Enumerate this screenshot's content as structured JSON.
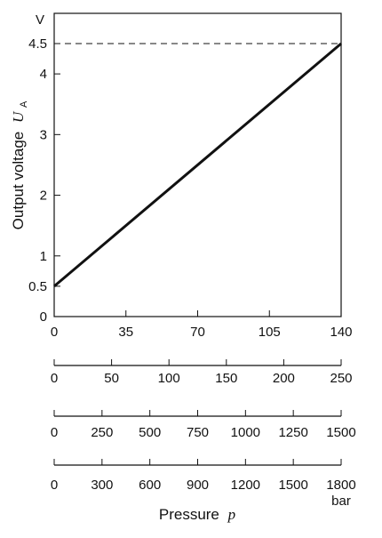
{
  "chart_data": {
    "type": "line",
    "title": "",
    "ylabel": "Output voltage",
    "ylabel_symbol": "U",
    "ylabel_subscript": "A",
    "y_unit": "V",
    "ylim": [
      0,
      4.5
    ],
    "yticks": [
      0,
      0.5,
      1,
      2,
      3,
      4,
      4.5
    ],
    "reference_line": {
      "y": 4.5,
      "style": "dashed"
    },
    "grid": false,
    "series": [
      {
        "x": [
          0,
          140
        ],
        "y": [
          0.5,
          4.5
        ]
      }
    ],
    "x_axes": [
      {
        "ticks": [
          0,
          35,
          70,
          105,
          140
        ],
        "min": 0,
        "max": 140,
        "unit": ""
      },
      {
        "ticks": [
          0,
          50,
          100,
          150,
          200,
          250
        ],
        "min": 0,
        "max": 250,
        "unit": ""
      },
      {
        "ticks": [
          0,
          250,
          500,
          750,
          1000,
          1250,
          1500
        ],
        "min": 0,
        "max": 1500,
        "unit": ""
      },
      {
        "ticks": [
          0,
          300,
          600,
          900,
          1200,
          1500,
          1800
        ],
        "min": 0,
        "max": 1800,
        "unit": "bar"
      }
    ],
    "xlabel": "Pressure",
    "xlabel_symbol": "p"
  }
}
